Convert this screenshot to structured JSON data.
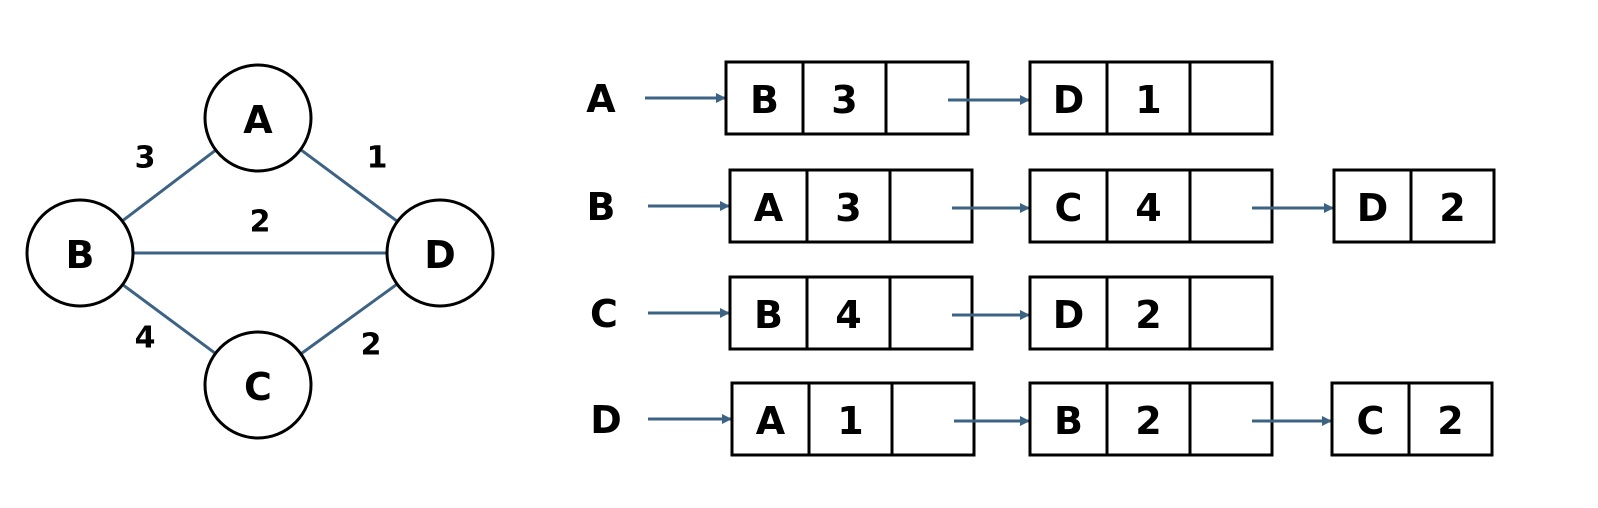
{
  "colors": {
    "edge": "#3d6384",
    "arrow": "#3d6384",
    "stroke": "#000000",
    "text": "#000000",
    "background": "#ffffff"
  },
  "graph": {
    "nodes": [
      "A",
      "B",
      "C",
      "D"
    ],
    "edges": [
      {
        "from": "A",
        "to": "B",
        "weight": "3"
      },
      {
        "from": "A",
        "to": "D",
        "weight": "1"
      },
      {
        "from": "B",
        "to": "D",
        "weight": "2"
      },
      {
        "from": "B",
        "to": "C",
        "weight": "4"
      },
      {
        "from": "C",
        "to": "D",
        "weight": "2"
      }
    ]
  },
  "adjacency_list": [
    {
      "vertex": "A",
      "entries": [
        {
          "neighbor": "B",
          "weight": "3"
        },
        {
          "neighbor": "D",
          "weight": "1"
        }
      ]
    },
    {
      "vertex": "B",
      "entries": [
        {
          "neighbor": "A",
          "weight": "3"
        },
        {
          "neighbor": "C",
          "weight": "4"
        },
        {
          "neighbor": "D",
          "weight": "2"
        }
      ]
    },
    {
      "vertex": "C",
      "entries": [
        {
          "neighbor": "B",
          "weight": "4"
        },
        {
          "neighbor": "D",
          "weight": "2"
        }
      ]
    },
    {
      "vertex": "D",
      "entries": [
        {
          "neighbor": "A",
          "weight": "1"
        },
        {
          "neighbor": "B",
          "weight": "2"
        },
        {
          "neighbor": "C",
          "weight": "2"
        }
      ]
    }
  ]
}
